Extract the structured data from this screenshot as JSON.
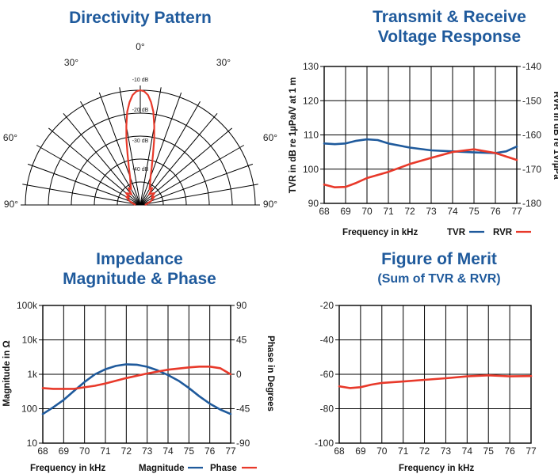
{
  "colors": {
    "title": "#1f5a9c",
    "blue": "#1f5a9c",
    "red": "#e8392a"
  },
  "chart_data": [
    {
      "id": "directivity",
      "type": "polar",
      "title": "Directivity Pattern",
      "angle_labels": [
        "0°",
        "30°",
        "30°",
        "60°",
        "60°",
        "90°",
        "90°"
      ],
      "ring_labels": [
        "-10 dB",
        "-20 dB",
        "-30 dB",
        "-40 dB"
      ],
      "rlim": [
        -50,
        0
      ],
      "series": [
        {
          "color": "#e8392a",
          "angle_deg": [
            -90,
            -80,
            -70,
            -60,
            -55,
            -50,
            -45,
            -40,
            -35,
            -30,
            -25,
            -20,
            -17,
            -14,
            -12,
            -10,
            -8,
            -6,
            -4,
            -2,
            0,
            2,
            4,
            6,
            8,
            10,
            12,
            14,
            17,
            20,
            25,
            30,
            35,
            40,
            45,
            50,
            55,
            60,
            70,
            80,
            90
          ],
          "db": [
            -48,
            -47,
            -45,
            -43,
            -44,
            -42,
            -43,
            -44,
            -41,
            -42,
            -40,
            -37,
            -33,
            -27,
            -21,
            -15,
            -9,
            -5,
            -2,
            -0.5,
            0,
            -0.5,
            -2,
            -5,
            -9,
            -15,
            -21,
            -27,
            -33,
            -37,
            -40,
            -42,
            -41,
            -44,
            -43,
            -42,
            -44,
            -43,
            -45,
            -47,
            -48
          ]
        }
      ]
    },
    {
      "id": "tvr_rvr",
      "type": "line",
      "title": "Transmit & Receive",
      "title_line2": "Voltage Response",
      "xlabel": "Frequency in kHz",
      "ylabel": "TVR in dB re 1µPa/V at 1 m",
      "y2label": "RVR in dB re 1V/µPa",
      "x_ticks": [
        "68",
        "69",
        "70",
        "71",
        "72",
        "73",
        "74",
        "75",
        "76",
        "77"
      ],
      "y_ticks": [
        "90",
        "100",
        "110",
        "120",
        "130"
      ],
      "y2_ticks": [
        "-140",
        "-150",
        "-160",
        "-170",
        "-180"
      ],
      "xlim": [
        68,
        77
      ],
      "ylim": [
        90,
        130
      ],
      "y2lim": [
        -180,
        -140
      ],
      "legend": [
        {
          "label": "TVR",
          "color": "#1f5a9c"
        },
        {
          "label": "RVR",
          "color": "#e8392a"
        }
      ],
      "series": [
        {
          "name": "TVR",
          "axis": "left",
          "color": "#1f5a9c",
          "x": [
            68,
            68.5,
            69,
            69.5,
            70,
            70.5,
            71,
            72,
            73,
            74,
            75,
            76,
            76.5,
            77
          ],
          "y": [
            107.5,
            107.3,
            107.5,
            108.3,
            108.7,
            108.5,
            107.5,
            106.3,
            105.5,
            105.2,
            104.9,
            104.7,
            105.2,
            106.6
          ]
        },
        {
          "name": "RVR",
          "axis": "right",
          "color": "#e8392a",
          "x": [
            68,
            68.5,
            69,
            69.5,
            70,
            71,
            72,
            73,
            74,
            75,
            76,
            77
          ],
          "y": [
            -174.5,
            -175.3,
            -175.2,
            -174,
            -172.6,
            -170.8,
            -168.5,
            -166.7,
            -165,
            -164.2,
            -165.3,
            -167.3
          ]
        }
      ]
    },
    {
      "id": "impedance",
      "type": "line",
      "title": "Impedance",
      "title_line2": "Magnitude & Phase",
      "xlabel": "Frequency in kHz",
      "ylabel": "Magnitude in Ω",
      "y2label": "Phase in Degrees",
      "x_ticks": [
        "68",
        "69",
        "70",
        "71",
        "72",
        "73",
        "74",
        "75",
        "76",
        "77"
      ],
      "y_ticks": [
        "10",
        "100",
        "1k",
        "10k",
        "100k"
      ],
      "y2_ticks": [
        "90",
        "45",
        "0",
        "-45",
        "-90"
      ],
      "yscale": "log",
      "xlim": [
        68,
        77
      ],
      "ylim": [
        10,
        100000
      ],
      "y2lim": [
        -90,
        90
      ],
      "legend": [
        {
          "label": "Magnitude",
          "color": "#1f5a9c"
        },
        {
          "label": "Phase",
          "color": "#e8392a"
        }
      ],
      "series": [
        {
          "name": "Magnitude",
          "axis": "left",
          "color": "#1f5a9c",
          "x": [
            68,
            68.5,
            69,
            69.5,
            70,
            70.5,
            71,
            71.5,
            72,
            72.5,
            73,
            73.5,
            74,
            74.5,
            75,
            75.5,
            76,
            76.5,
            77
          ],
          "y": [
            70,
            110,
            180,
            330,
            600,
            1000,
            1400,
            1750,
            1950,
            1900,
            1650,
            1300,
            950,
            650,
            400,
            230,
            140,
            95,
            70
          ]
        },
        {
          "name": "Phase",
          "axis": "right",
          "color": "#e8392a",
          "x": [
            68,
            68.5,
            69,
            69.5,
            70,
            70.5,
            71,
            72,
            73,
            74,
            75,
            75.5,
            76,
            76.5,
            77
          ],
          "y": [
            -18,
            -19,
            -19,
            -19,
            -17,
            -15,
            -12,
            -5,
            1,
            6,
            9,
            10,
            10,
            8,
            0
          ]
        }
      ]
    },
    {
      "id": "fom",
      "type": "line",
      "title": "Figure of Merit",
      "subtitle": "(Sum of TVR & RVR)",
      "xlabel": "Frequency in kHz",
      "x_ticks": [
        "68",
        "69",
        "70",
        "71",
        "72",
        "73",
        "74",
        "75",
        "76",
        "77"
      ],
      "y_ticks": [
        "-100",
        "-80",
        "-60",
        "-40",
        "-20"
      ],
      "xlim": [
        68,
        77
      ],
      "ylim": [
        -100,
        -20
      ],
      "series": [
        {
          "color": "#e8392a",
          "x": [
            68,
            68.5,
            69,
            69.5,
            70,
            71,
            72,
            73,
            74,
            75,
            76,
            77
          ],
          "y": [
            -67,
            -68,
            -67.5,
            -66,
            -65,
            -64.2,
            -63.2,
            -62.3,
            -61.2,
            -60.6,
            -61.2,
            -61
          ]
        }
      ]
    }
  ]
}
